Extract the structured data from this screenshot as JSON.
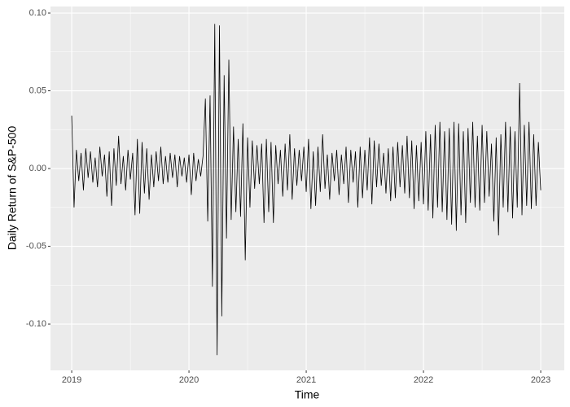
{
  "chart_data": {
    "type": "line",
    "xlabel": "Time",
    "ylabel": "Daily Return of S&P-500",
    "x": [
      2019,
      2019.02,
      2019.04,
      2019.06,
      2019.08,
      2019.1,
      2019.12,
      2019.14,
      2019.16,
      2019.18,
      2019.2,
      2019.22,
      2019.24,
      2019.26,
      2019.28,
      2019.3,
      2019.32,
      2019.34,
      2019.36,
      2019.38,
      2019.4,
      2019.42,
      2019.44,
      2019.46,
      2019.48,
      2019.5,
      2019.52,
      2019.54,
      2019.56,
      2019.58,
      2019.6,
      2019.62,
      2019.64,
      2019.66,
      2019.68,
      2019.7,
      2019.72,
      2019.74,
      2019.76,
      2019.78,
      2019.8,
      2019.82,
      2019.84,
      2019.86,
      2019.88,
      2019.9,
      2019.92,
      2019.94,
      2019.96,
      2019.98,
      2020,
      2020.02,
      2020.04,
      2020.06,
      2020.08,
      2020.1,
      2020.12,
      2020.14,
      2020.16,
      2020.18,
      2020.2,
      2020.22,
      2020.24,
      2020.26,
      2020.28,
      2020.3,
      2020.32,
      2020.34,
      2020.36,
      2020.38,
      2020.4,
      2020.42,
      2020.44,
      2020.46,
      2020.48,
      2020.5,
      2020.52,
      2020.54,
      2020.56,
      2020.58,
      2020.6,
      2020.62,
      2020.64,
      2020.66,
      2020.68,
      2020.7,
      2020.72,
      2020.74,
      2020.76,
      2020.78,
      2020.8,
      2020.82,
      2020.84,
      2020.86,
      2020.88,
      2020.9,
      2020.92,
      2020.94,
      2020.96,
      2020.98,
      2021,
      2021.02,
      2021.04,
      2021.06,
      2021.08,
      2021.1,
      2021.12,
      2021.14,
      2021.16,
      2021.18,
      2021.2,
      2021.22,
      2021.24,
      2021.26,
      2021.28,
      2021.3,
      2021.32,
      2021.34,
      2021.36,
      2021.38,
      2021.4,
      2021.42,
      2021.44,
      2021.46,
      2021.48,
      2021.5,
      2021.52,
      2021.54,
      2021.56,
      2021.58,
      2021.6,
      2021.62,
      2021.64,
      2021.66,
      2021.68,
      2021.7,
      2021.72,
      2021.74,
      2021.76,
      2021.78,
      2021.8,
      2021.82,
      2021.84,
      2021.86,
      2021.88,
      2021.9,
      2021.92,
      2021.94,
      2021.96,
      2021.98,
      2022,
      2022.02,
      2022.04,
      2022.06,
      2022.08,
      2022.1,
      2022.12,
      2022.14,
      2022.16,
      2022.18,
      2022.2,
      2022.22,
      2022.24,
      2022.26,
      2022.28,
      2022.3,
      2022.32,
      2022.34,
      2022.36,
      2022.38,
      2022.4,
      2022.42,
      2022.44,
      2022.46,
      2022.48,
      2022.5,
      2022.52,
      2022.54,
      2022.56,
      2022.58,
      2022.6,
      2022.62,
      2022.64,
      2022.66,
      2022.68,
      2022.7,
      2022.72,
      2022.74,
      2022.76,
      2022.78,
      2022.8,
      2022.82,
      2022.84,
      2022.86,
      2022.88,
      2022.9,
      2022.92,
      2022.94,
      2022.96,
      2022.98,
      2023
    ],
    "values": [
      0.034,
      -0.025,
      0.012,
      -0.008,
      0.01,
      -0.014,
      0.013,
      -0.006,
      0.011,
      -0.009,
      0.007,
      -0.012,
      0.014,
      -0.005,
      0.009,
      -0.018,
      0.011,
      -0.024,
      0.013,
      -0.011,
      0.021,
      -0.01,
      0.008,
      -0.014,
      0.012,
      -0.007,
      0.01,
      -0.03,
      0.019,
      -0.029,
      0.017,
      -0.016,
      0.013,
      -0.02,
      0.009,
      -0.012,
      0.011,
      -0.008,
      0.014,
      -0.01,
      0.008,
      -0.009,
      0.01,
      -0.006,
      0.009,
      -0.012,
      0.008,
      -0.005,
      0.007,
      -0.009,
      0.009,
      -0.017,
      0.01,
      -0.008,
      0.006,
      -0.005,
      0.008,
      0.045,
      -0.034,
      0.047,
      -0.076,
      0.093,
      -0.12,
      0.092,
      -0.095,
      0.06,
      -0.045,
      0.07,
      -0.033,
      0.027,
      -0.028,
      0.019,
      -0.031,
      0.029,
      -0.059,
      0.02,
      -0.025,
      0.018,
      -0.013,
      0.015,
      -0.01,
      0.016,
      -0.035,
      0.019,
      -0.028,
      0.017,
      -0.035,
      0.015,
      -0.01,
      0.012,
      -0.018,
      0.016,
      -0.014,
      0.022,
      -0.02,
      0.013,
      -0.011,
      0.012,
      -0.008,
      0.014,
      -0.015,
      0.019,
      -0.026,
      0.011,
      -0.024,
      0.014,
      -0.015,
      0.022,
      -0.013,
      0.009,
      -0.02,
      0.01,
      -0.008,
      0.012,
      -0.017,
      0.009,
      -0.01,
      0.014,
      -0.022,
      0.012,
      -0.009,
      0.011,
      -0.025,
      0.014,
      -0.019,
      0.012,
      -0.014,
      0.02,
      -0.023,
      0.018,
      -0.012,
      0.016,
      -0.011,
      0.01,
      -0.016,
      0.013,
      -0.021,
      0.014,
      -0.019,
      0.017,
      -0.012,
      0.015,
      -0.016,
      0.021,
      -0.019,
      0.018,
      -0.026,
      0.015,
      -0.021,
      0.017,
      -0.023,
      0.024,
      -0.027,
      0.022,
      -0.032,
      0.028,
      -0.025,
      0.03,
      -0.028,
      0.024,
      -0.033,
      0.026,
      -0.036,
      0.03,
      -0.04,
      0.029,
      -0.03,
      0.024,
      -0.035,
      0.026,
      -0.022,
      0.03,
      -0.025,
      0.021,
      -0.027,
      0.028,
      -0.022,
      0.024,
      -0.018,
      0.016,
      -0.034,
      0.02,
      -0.043,
      0.022,
      -0.025,
      0.03,
      -0.028,
      0.027,
      -0.032,
      0.024,
      -0.025,
      0.055,
      -0.03,
      0.028,
      -0.024,
      0.03,
      -0.026,
      0.022,
      -0.024,
      0.017,
      -0.014
    ],
    "color": "#000000",
    "xlim": [
      2018.819,
      2023.201
    ],
    "xticks": [
      2019,
      2020,
      2021,
      2022,
      2023
    ],
    "ylim": [
      -0.1298,
      0.1042
    ],
    "yticks": [
      {
        "value": -0.1,
        "label": "-0.10"
      },
      -0.05,
      {
        "value": 0,
        "label": "0.00"
      },
      0.05,
      {
        "value": 0.1,
        "label": "0.10"
      }
    ],
    "grid": true
  }
}
